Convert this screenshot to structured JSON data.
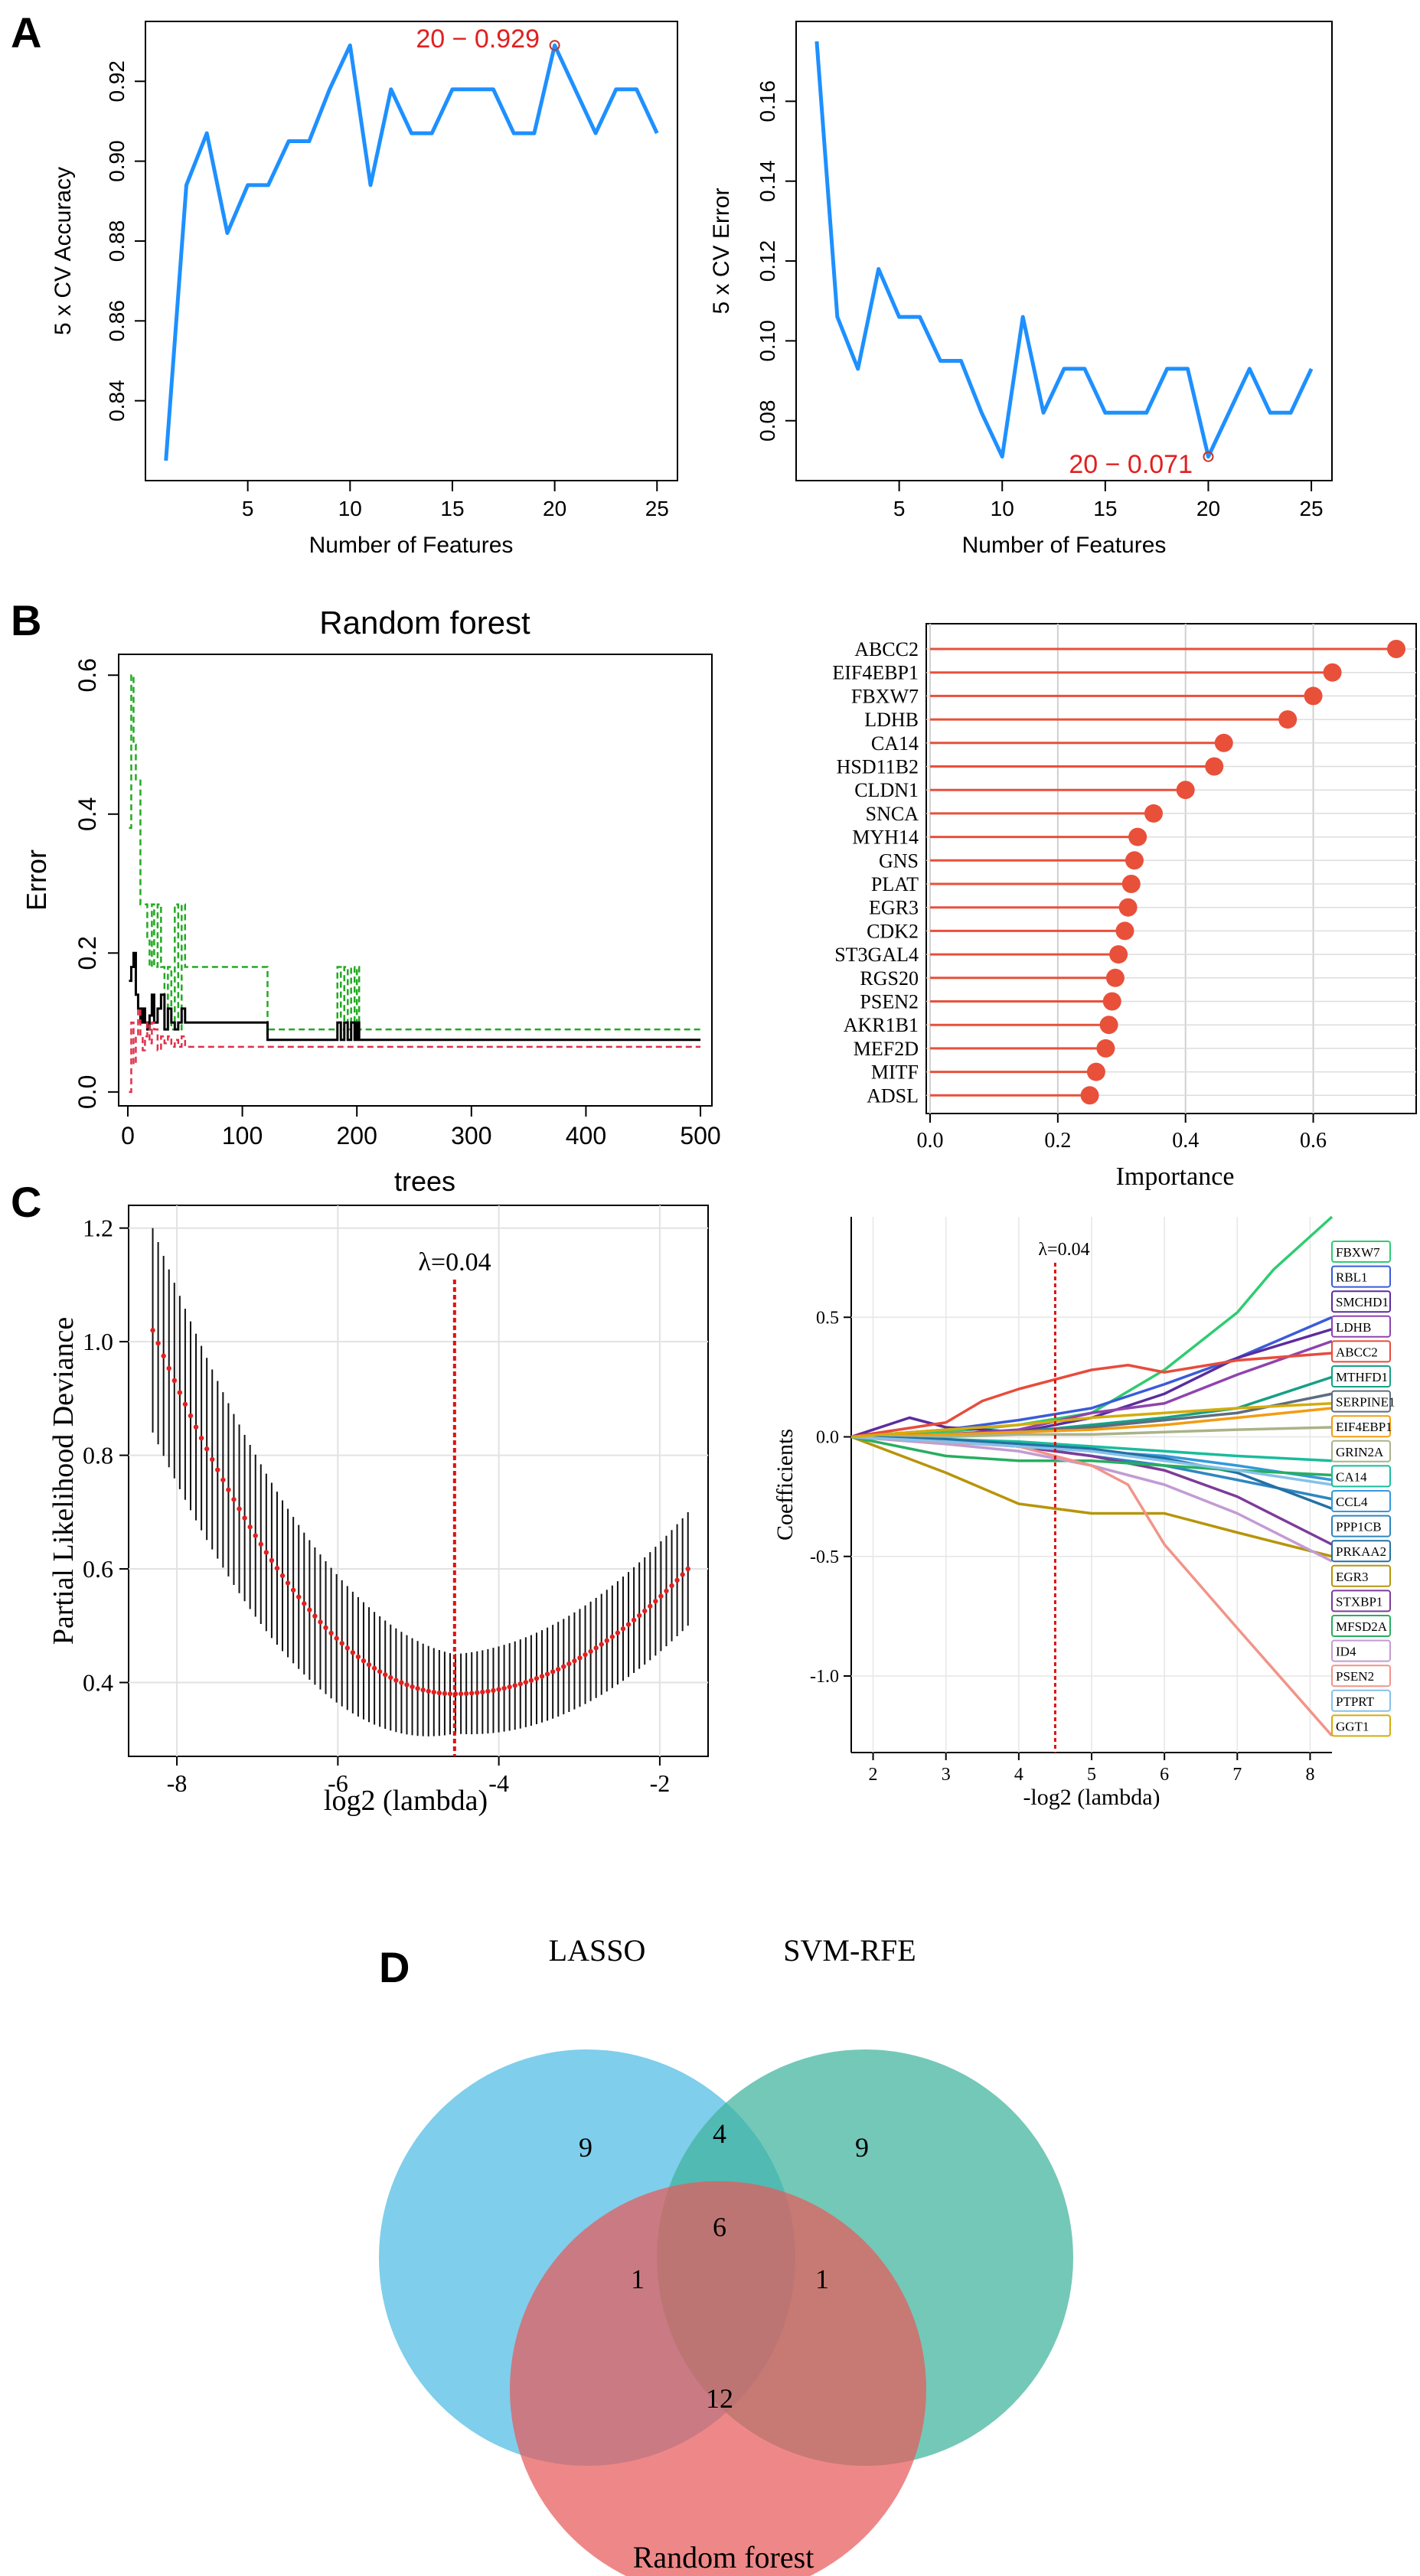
{
  "colors": {
    "svm_line": "#1E90FF",
    "red": "#E02020",
    "lollipop": "#E8503A",
    "rf_green": "#22AA22",
    "rf_red": "#E0304A",
    "venn_lasso": "#5BC0E5",
    "venn_svm": "#3FB39C",
    "venn_rf": "#E85A5A",
    "lambda_line": "#DD1111"
  },
  "panels": {
    "a": "A",
    "b": "B",
    "c": "C",
    "d": "D"
  },
  "chart_data": [
    {
      "id": "svm_accuracy",
      "type": "line",
      "xlabel": "Number of Features",
      "ylabel": "5 x CV Accuracy",
      "xlim": [
        0,
        26
      ],
      "ylim": [
        0.82,
        0.935
      ],
      "xticks": [
        "5",
        "10",
        "15",
        "20",
        "25"
      ],
      "yticks": [
        "0.84",
        "0.86",
        "0.88",
        "0.90",
        "0.92"
      ],
      "x": [
        1,
        2,
        3,
        4,
        5,
        6,
        7,
        8,
        9,
        10,
        11,
        12,
        13,
        14,
        15,
        16,
        17,
        18,
        19,
        20,
        21,
        22,
        23,
        24,
        25
      ],
      "values": [
        0.825,
        0.894,
        0.907,
        0.882,
        0.894,
        0.894,
        0.905,
        0.905,
        0.918,
        0.929,
        0.894,
        0.918,
        0.907,
        0.907,
        0.918,
        0.918,
        0.918,
        0.907,
        0.907,
        0.929,
        0.918,
        0.907,
        0.918,
        0.918,
        0.907
      ],
      "annotation": "20 − 0.929",
      "highlight": {
        "x": 20,
        "y": 0.929
      }
    },
    {
      "id": "svm_error",
      "type": "line",
      "xlabel": "Number of Features",
      "ylabel": "5 x CV Error",
      "xlim": [
        0,
        26
      ],
      "ylim": [
        0.065,
        0.18
      ],
      "xticks": [
        "5",
        "10",
        "15",
        "20",
        "25"
      ],
      "yticks": [
        "0.08",
        "0.10",
        "0.12",
        "0.14",
        "0.16"
      ],
      "x": [
        1,
        2,
        3,
        4,
        5,
        6,
        7,
        8,
        9,
        10,
        11,
        12,
        13,
        14,
        15,
        16,
        17,
        18,
        19,
        20,
        21,
        22,
        23,
        24,
        25
      ],
      "values": [
        0.175,
        0.106,
        0.093,
        0.118,
        0.106,
        0.106,
        0.095,
        0.095,
        0.082,
        0.071,
        0.106,
        0.082,
        0.093,
        0.093,
        0.082,
        0.082,
        0.082,
        0.093,
        0.093,
        0.071,
        0.082,
        0.093,
        0.082,
        0.082,
        0.093
      ],
      "annotation": "20 − 0.071",
      "highlight": {
        "x": 20,
        "y": 0.071
      }
    },
    {
      "id": "rf_error",
      "type": "line",
      "title": "Random forest",
      "xlabel": "trees",
      "ylabel": "Error",
      "xlim": [
        -8,
        510
      ],
      "ylim": [
        -0.02,
        0.63
      ],
      "xticks": [
        "0",
        "100",
        "200",
        "300",
        "400",
        "500"
      ],
      "yticks": [
        "0.0",
        "0.2",
        "0.4",
        "0.6"
      ],
      "series": [
        {
          "name": "green",
          "style": "dashed",
          "x": [
            1,
            3,
            5,
            7,
            9,
            11,
            13,
            15,
            17,
            19,
            21,
            23,
            26,
            29,
            32,
            35,
            38,
            41,
            44,
            47,
            50,
            55,
            60,
            80,
            100,
            120,
            122,
            140,
            160,
            180,
            183,
            186,
            189,
            192,
            195,
            198,
            200,
            202,
            250,
            300,
            400,
            500
          ],
          "y": [
            0.38,
            0.6,
            0.5,
            0.45,
            0.45,
            0.27,
            0.27,
            0.27,
            0.22,
            0.18,
            0.27,
            0.18,
            0.27,
            0.18,
            0.09,
            0.18,
            0.09,
            0.27,
            0.09,
            0.27,
            0.18,
            0.18,
            0.18,
            0.18,
            0.18,
            0.18,
            0.09,
            0.09,
            0.09,
            0.09,
            0.18,
            0.09,
            0.18,
            0.09,
            0.18,
            0.09,
            0.18,
            0.09,
            0.09,
            0.09,
            0.09,
            0.09
          ]
        },
        {
          "name": "black",
          "style": "solid",
          "x": [
            1,
            3,
            5,
            7,
            9,
            11,
            13,
            15,
            17,
            19,
            21,
            23,
            26,
            29,
            32,
            35,
            38,
            41,
            44,
            47,
            50,
            55,
            60,
            80,
            100,
            120,
            122,
            140,
            160,
            180,
            183,
            186,
            189,
            192,
            195,
            198,
            200,
            202,
            250,
            300,
            400,
            500
          ],
          "y": [
            0.16,
            0.18,
            0.2,
            0.14,
            0.12,
            0.1,
            0.12,
            0.1,
            0.09,
            0.11,
            0.14,
            0.1,
            0.12,
            0.14,
            0.09,
            0.12,
            0.1,
            0.09,
            0.1,
            0.12,
            0.1,
            0.1,
            0.1,
            0.1,
            0.1,
            0.1,
            0.075,
            0.075,
            0.075,
            0.075,
            0.1,
            0.075,
            0.1,
            0.075,
            0.1,
            0.075,
            0.1,
            0.075,
            0.075,
            0.075,
            0.075,
            0.075
          ]
        },
        {
          "name": "red",
          "style": "dashed",
          "x": [
            1,
            3,
            5,
            7,
            9,
            11,
            13,
            15,
            17,
            19,
            21,
            23,
            26,
            29,
            32,
            35,
            38,
            41,
            44,
            47,
            50,
            55,
            60,
            80,
            100,
            120,
            122,
            140,
            160,
            180,
            183,
            186,
            189,
            192,
            195,
            198,
            200,
            202,
            250,
            300,
            400,
            500
          ],
          "y": [
            0.0,
            0.1,
            0.04,
            0.08,
            0.12,
            0.08,
            0.06,
            0.08,
            0.1,
            0.07,
            0.1,
            0.09,
            0.06,
            0.08,
            0.07,
            0.08,
            0.065,
            0.075,
            0.065,
            0.08,
            0.065,
            0.065,
            0.065,
            0.065,
            0.065,
            0.065,
            0.065,
            0.065,
            0.065,
            0.065,
            0.065,
            0.065,
            0.065,
            0.065,
            0.065,
            0.065,
            0.065,
            0.065,
            0.065,
            0.065,
            0.065,
            0.065
          ]
        }
      ]
    },
    {
      "id": "rf_importance",
      "type": "bar",
      "xlabel": "Importance",
      "xlim": [
        0,
        0.73
      ],
      "xticks": [
        "0.0",
        "0.2",
        "0.4",
        "0.6"
      ],
      "categories": [
        "ABCC2",
        "EIF4EBP1",
        "FBXW7",
        "LDHB",
        "CA14",
        "HSD11B2",
        "CLDN1",
        "SNCA",
        "MYH14",
        "GNS",
        "PLAT",
        "EGR3",
        "CDK2",
        "ST3GAL4",
        "RGS20",
        "PSEN2",
        "AKR1B1",
        "MEF2D",
        "MITF",
        "ADSL"
      ],
      "values": [
        0.73,
        0.63,
        0.6,
        0.56,
        0.46,
        0.445,
        0.4,
        0.35,
        0.325,
        0.32,
        0.315,
        0.31,
        0.305,
        0.295,
        0.29,
        0.285,
        0.28,
        0.275,
        0.26,
        0.25
      ]
    },
    {
      "id": "lasso_cv",
      "type": "scatter",
      "xlabel": "log2 (lambda)",
      "ylabel": "Partial Likelihood Deviance",
      "xlim": [
        -8.6,
        -1.4
      ],
      "ylim": [
        0.27,
        1.24
      ],
      "xticks": [
        "-8",
        "-6",
        "-4",
        "-2"
      ],
      "yticks": [
        "0.4",
        "0.6",
        "0.8",
        "1.0",
        "1.2"
      ],
      "annotation": "λ=0.04",
      "lambda_line_x": -4.55,
      "curve": {
        "x_from": -8.3,
        "x_to": -1.65,
        "n": 100,
        "min_x": -4.55,
        "min_y": 0.38,
        "left_y": 1.02,
        "right_y": 0.6,
        "err_left": 0.18,
        "err_mid": 0.07,
        "err_right": 0.1
      }
    },
    {
      "id": "lasso_coef",
      "type": "line",
      "xlabel": "-log2 (lambda)",
      "ylabel": "Coefficients",
      "xlim": [
        1.7,
        8.3
      ],
      "ylim": [
        -1.32,
        0.92
      ],
      "xticks": [
        "2",
        "3",
        "4",
        "5",
        "6",
        "7",
        "8"
      ],
      "yticks": [
        "-1.0",
        "-0.5",
        "0.0",
        "0.5"
      ],
      "annotation": "λ=0.04",
      "lambda_line_x": 4.5,
      "series": [
        {
          "name": "FBXW7",
          "color": "#2ECC71",
          "x": [
            1.7,
            3,
            4,
            5,
            6,
            7,
            7.5,
            8.3
          ],
          "y": [
            0,
            0.02,
            0.05,
            0.1,
            0.28,
            0.52,
            0.7,
            0.92
          ]
        },
        {
          "name": "RBL1",
          "color": "#3A5BD9",
          "x": [
            1.7,
            3,
            4,
            5,
            6,
            7,
            8.3
          ],
          "y": [
            0,
            0.03,
            0.07,
            0.12,
            0.22,
            0.33,
            0.5
          ]
        },
        {
          "name": "SMCHD1",
          "color": "#5B2C9E",
          "x": [
            1.7,
            2.5,
            3,
            4,
            5,
            6,
            7,
            8.3
          ],
          "y": [
            0,
            0.08,
            0.04,
            0.02,
            0.08,
            0.18,
            0.33,
            0.45
          ]
        },
        {
          "name": "LDHB",
          "color": "#8E44AD",
          "x": [
            1.7,
            3,
            4,
            5,
            6,
            7,
            8.3
          ],
          "y": [
            0,
            0.01,
            0.03,
            0.1,
            0.14,
            0.26,
            0.4
          ]
        },
        {
          "name": "ABCC2",
          "color": "#E74C3C",
          "x": [
            1.7,
            3,
            3.5,
            4,
            5,
            5.5,
            6,
            7,
            8.3
          ],
          "y": [
            0,
            0.06,
            0.15,
            0.2,
            0.28,
            0.3,
            0.27,
            0.32,
            0.35
          ]
        },
        {
          "name": "MTHFD1",
          "color": "#16A085",
          "x": [
            1.7,
            3,
            4,
            5,
            6,
            7,
            8.3
          ],
          "y": [
            0,
            0.01,
            0.02,
            0.05,
            0.08,
            0.12,
            0.25
          ]
        },
        {
          "name": "SERPINE1",
          "color": "#5D6D7E",
          "x": [
            1.7,
            3,
            4,
            5,
            6,
            7,
            8.3
          ],
          "y": [
            0,
            0.01,
            0.02,
            0.04,
            0.07,
            0.1,
            0.18
          ]
        },
        {
          "name": "EIF4EBP1",
          "color": "#F39C12",
          "x": [
            1.7,
            3,
            4,
            5,
            6,
            7,
            8.3
          ],
          "y": [
            0,
            0.01,
            0.02,
            0.03,
            0.05,
            0.08,
            0.12
          ]
        },
        {
          "name": "GRIN2A",
          "color": "#A9B388",
          "x": [
            1.7,
            3,
            4,
            5,
            6,
            7,
            8.3
          ],
          "y": [
            0,
            0.0,
            0.01,
            0.01,
            0.02,
            0.03,
            0.04
          ]
        },
        {
          "name": "CA14",
          "color": "#1ABC9C",
          "x": [
            1.7,
            3,
            4,
            5,
            6,
            7,
            8.3
          ],
          "y": [
            0,
            -0.01,
            -0.02,
            -0.04,
            -0.06,
            -0.08,
            -0.1
          ]
        },
        {
          "name": "CCL4",
          "color": "#3498DB",
          "x": [
            1.7,
            3,
            4,
            5,
            6,
            7,
            8.3
          ],
          "y": [
            0,
            -0.01,
            -0.03,
            -0.06,
            -0.08,
            -0.12,
            -0.18
          ]
        },
        {
          "name": "PPP1CB",
          "color": "#2E86C1",
          "x": [
            1.7,
            3,
            4,
            5,
            6,
            7,
            8.3
          ],
          "y": [
            0,
            -0.02,
            -0.04,
            -0.08,
            -0.12,
            -0.18,
            -0.26
          ]
        },
        {
          "name": "PRKAA2",
          "color": "#2471A3",
          "x": [
            1.7,
            3,
            4,
            5,
            6,
            7,
            8.3
          ],
          "y": [
            0,
            -0.01,
            -0.03,
            -0.05,
            -0.09,
            -0.15,
            -0.3
          ]
        },
        {
          "name": "EGR3",
          "color": "#B7950B",
          "x": [
            1.7,
            3,
            4,
            4.5,
            5,
            6,
            7,
            8.3
          ],
          "y": [
            0,
            -0.15,
            -0.28,
            -0.3,
            -0.32,
            -0.32,
            -0.4,
            -0.5
          ]
        },
        {
          "name": "STXBP1",
          "color": "#7D3C98",
          "x": [
            1.7,
            3,
            4,
            5,
            6,
            7,
            8.3
          ],
          "y": [
            0,
            -0.02,
            -0.04,
            -0.08,
            -0.14,
            -0.25,
            -0.45
          ]
        },
        {
          "name": "MFSD2A",
          "color": "#27AE60",
          "x": [
            1.7,
            3,
            4,
            5,
            6,
            7,
            8.3
          ],
          "y": [
            0,
            -0.08,
            -0.1,
            -0.1,
            -0.12,
            -0.14,
            -0.16
          ]
        },
        {
          "name": "ID4",
          "color": "#C39BD3",
          "x": [
            1.7,
            3,
            4,
            5,
            6,
            7,
            8.3
          ],
          "y": [
            0,
            -0.03,
            -0.06,
            -0.12,
            -0.2,
            -0.32,
            -0.52
          ]
        },
        {
          "name": "PSEN2",
          "color": "#F1948A",
          "x": [
            1.7,
            4,
            5,
            5.5,
            6,
            7,
            8.3
          ],
          "y": [
            0,
            -0.04,
            -0.12,
            -0.2,
            -0.45,
            -0.8,
            -1.25
          ]
        },
        {
          "name": "PTPRT",
          "color": "#85C1E9",
          "x": [
            1.7,
            3,
            4,
            5,
            6,
            7,
            8.3
          ],
          "y": [
            0,
            -0.02,
            -0.04,
            -0.06,
            -0.1,
            -0.14,
            -0.2
          ]
        },
        {
          "name": "GGT1",
          "color": "#D4AC0D",
          "x": [
            1.7,
            3,
            4,
            5,
            6,
            7,
            8.3
          ],
          "y": [
            0,
            0.03,
            0.05,
            0.08,
            0.1,
            0.12,
            0.14
          ]
        }
      ]
    },
    {
      "id": "venn",
      "type": "venn",
      "sets": [
        "LASSO",
        "SVM-RFE",
        "Random forest"
      ],
      "regions": {
        "lasso_only": "9",
        "svm_only": "9",
        "rf_only": "12",
        "lasso_svm": "4",
        "lasso_rf": "1",
        "svm_rf": "1",
        "all": "6"
      }
    }
  ]
}
